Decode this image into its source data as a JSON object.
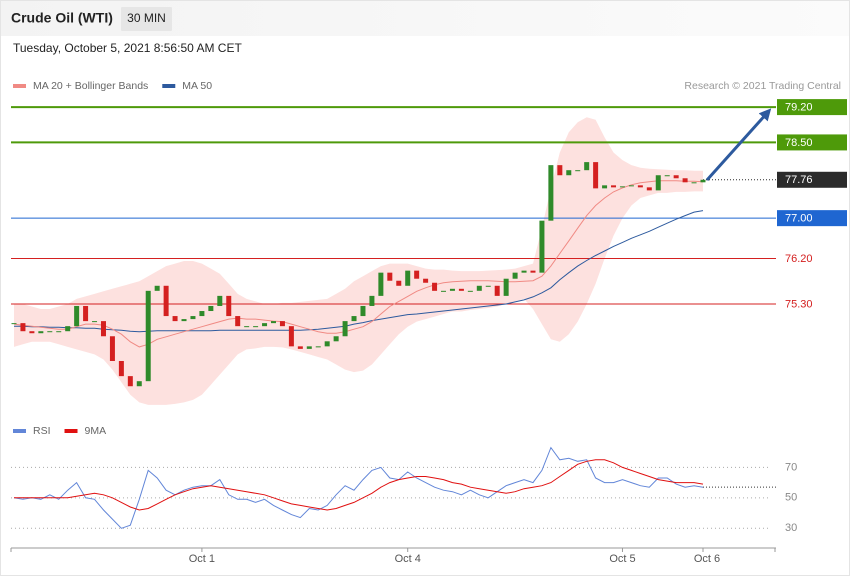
{
  "header": {
    "title": "Crude Oil (WTI)",
    "interval": "30 MIN",
    "timestamp": "Tuesday, October 5, 2021 8:56:50 AM CET",
    "credit": "Research © 2021 Trading Central"
  },
  "chart_data": [
    {
      "type": "candlestick",
      "up_color": "#2f8a2a",
      "down_color": "#d42020",
      "values": [
        74.92,
        74.76,
        74.72,
        74.76,
        74.76,
        74.76,
        74.86,
        75.26,
        74.96,
        74.96,
        74.66,
        74.17,
        73.87,
        73.67,
        73.77,
        75.56,
        75.66,
        75.06,
        74.96,
        75.0,
        75.06,
        75.16,
        75.26,
        75.46,
        75.06,
        74.86,
        74.86,
        74.86,
        74.92,
        74.96,
        74.86,
        74.46,
        74.41,
        74.46,
        74.46,
        74.56,
        74.66,
        74.96,
        75.06,
        75.26,
        75.46,
        75.92,
        75.76,
        75.66,
        75.96,
        75.8,
        75.72,
        75.56,
        75.56,
        75.6,
        75.56,
        75.56,
        75.66,
        75.66,
        75.46,
        75.8,
        75.92,
        75.96,
        75.92,
        76.95,
        78.05,
        77.85,
        77.95,
        77.95,
        78.11,
        77.59,
        77.65,
        77.61,
        77.63,
        77.65,
        77.61,
        77.55,
        77.85,
        77.85,
        77.79,
        77.71,
        77.71,
        77.76
      ],
      "series": [
        {
          "name": "MA 20 + Bollinger Bands",
          "color": "#f08a84",
          "band_color": "#fde1df",
          "values": [
            74.9,
            74.88,
            74.86,
            74.84,
            74.82,
            74.8,
            74.8,
            74.85,
            74.9,
            74.9,
            74.88,
            74.8,
            74.7,
            74.55,
            74.45,
            74.5,
            74.6,
            74.65,
            74.7,
            74.75,
            74.8,
            74.85,
            74.9,
            74.95,
            75.0,
            75.02,
            75.0,
            75.0,
            74.98,
            74.96,
            74.95,
            74.9,
            74.85,
            74.8,
            74.75,
            74.72,
            74.72,
            74.75,
            74.8,
            74.85,
            74.95,
            75.1,
            75.25,
            75.35,
            75.45,
            75.55,
            75.62,
            75.68,
            75.72,
            75.74,
            75.75,
            75.76,
            75.76,
            75.76,
            75.75,
            75.74,
            75.74,
            75.75,
            75.76,
            75.85,
            76.05,
            76.3,
            76.55,
            76.8,
            77.05,
            77.25,
            77.4,
            77.52,
            77.6,
            77.66,
            77.7,
            77.72,
            77.74,
            77.74,
            77.74,
            77.73,
            77.73,
            77.72
          ],
          "upper": [
            75.3,
            75.3,
            75.25,
            75.2,
            75.2,
            75.25,
            75.3,
            75.4,
            75.45,
            75.5,
            75.55,
            75.6,
            75.65,
            75.7,
            75.75,
            75.85,
            75.95,
            76.05,
            76.1,
            76.15,
            76.15,
            76.1,
            76.0,
            75.9,
            75.7,
            75.5,
            75.4,
            75.35,
            75.3,
            75.3,
            75.32,
            75.32,
            75.34,
            75.36,
            75.38,
            75.4,
            75.5,
            75.6,
            75.75,
            75.85,
            75.95,
            76.05,
            76.1,
            76.1,
            76.1,
            76.05,
            76.0,
            75.98,
            75.98,
            75.96,
            75.95,
            75.95,
            75.95,
            75.96,
            75.97,
            75.98,
            76.0,
            76.05,
            76.1,
            76.8,
            77.6,
            78.3,
            78.7,
            78.9,
            79.0,
            78.95,
            78.6,
            78.3,
            78.15,
            78.05,
            78.0,
            77.98,
            77.97,
            77.96,
            77.95,
            77.95,
            77.94,
            77.94
          ],
          "lower": [
            74.45,
            74.5,
            74.55,
            74.55,
            74.55,
            74.5,
            74.45,
            74.4,
            74.35,
            74.3,
            74.2,
            74.0,
            73.75,
            73.5,
            73.35,
            73.3,
            73.3,
            73.3,
            73.32,
            73.35,
            73.4,
            73.5,
            73.7,
            73.9,
            74.1,
            74.3,
            74.4,
            74.42,
            74.45,
            74.45,
            74.44,
            74.4,
            74.35,
            74.3,
            74.25,
            74.2,
            74.1,
            74.0,
            73.95,
            73.98,
            74.1,
            74.3,
            74.5,
            74.7,
            74.85,
            74.95,
            75.0,
            75.05,
            75.1,
            75.15,
            75.15,
            75.18,
            75.2,
            75.22,
            75.25,
            75.3,
            75.35,
            75.4,
            75.2,
            74.9,
            74.6,
            74.55,
            74.7,
            74.95,
            75.3,
            75.7,
            76.2,
            76.65,
            77.0,
            77.25,
            77.4,
            77.45,
            77.5,
            77.5,
            77.52,
            77.52,
            77.53,
            77.53
          ]
        },
        {
          "name": "MA 50",
          "color": "#2d5a9e",
          "values": [
            74.86,
            74.86,
            74.85,
            74.85,
            74.84,
            74.84,
            74.83,
            74.83,
            74.82,
            74.82,
            74.8,
            74.79,
            74.78,
            74.76,
            74.75,
            74.76,
            74.77,
            74.77,
            74.77,
            74.77,
            74.77,
            74.77,
            74.77,
            74.78,
            74.78,
            74.78,
            74.78,
            74.78,
            74.78,
            74.78,
            74.78,
            74.78,
            74.78,
            74.79,
            74.8,
            74.82,
            74.84,
            74.86,
            74.9,
            74.93,
            74.97,
            75.0,
            75.03,
            75.06,
            75.09,
            75.1,
            75.12,
            75.14,
            75.16,
            75.18,
            75.2,
            75.22,
            75.24,
            75.26,
            75.28,
            75.3,
            75.34,
            75.38,
            75.44,
            75.52,
            75.62,
            75.78,
            75.92,
            76.05,
            76.16,
            76.26,
            76.35,
            76.44,
            76.52,
            76.6,
            76.67,
            76.74,
            76.82,
            76.9,
            76.98,
            77.05,
            77.12,
            77.15
          ]
        }
      ],
      "ylim": [
        73.1,
        79.4
      ],
      "levels": [
        {
          "value": 79.2,
          "label": "79.20",
          "color": "#4e9a0a",
          "filled": true,
          "line": "solid",
          "line_width": 2
        },
        {
          "value": 78.5,
          "label": "78.50",
          "color": "#4e9a0a",
          "filled": true,
          "line": "solid",
          "line_width": 2
        },
        {
          "value": 77.76,
          "label": "77.76",
          "color": "#2b2b2b",
          "filled": true,
          "line": "dotted",
          "line_width": 1
        },
        {
          "value": 77.0,
          "label": "77.00",
          "color": "#1f66d1",
          "filled": true,
          "line": "solid",
          "line_width": 1
        },
        {
          "value": 76.2,
          "label": "76.20",
          "color": "#d42020",
          "filled": false,
          "line": "solid",
          "line_width": 1
        },
        {
          "value": 75.3,
          "label": "75.30",
          "color": "#d42020",
          "filled": false,
          "line": "solid",
          "line_width": 1
        }
      ]
    },
    {
      "type": "line",
      "categories": [
        null,
        null,
        null,
        null,
        null,
        null,
        null,
        null,
        null,
        null,
        null,
        null,
        null,
        null,
        null,
        null,
        null,
        null,
        null,
        null,
        null,
        "Oct 1",
        null,
        null,
        null,
        null,
        null,
        null,
        null,
        null,
        null,
        null,
        null,
        null,
        null,
        null,
        null,
        null,
        null,
        null,
        null,
        null,
        null,
        null,
        "Oct 4",
        null,
        null,
        null,
        null,
        null,
        null,
        null,
        null,
        null,
        null,
        null,
        null,
        null,
        null,
        null,
        null,
        null,
        null,
        null,
        null,
        null,
        null,
        null,
        "Oct 5",
        null,
        null,
        null,
        null,
        null,
        null,
        null,
        null,
        "Oct 6"
      ],
      "series": [
        {
          "name": "RSI",
          "color": "#6286d8",
          "values": [
            50,
            49,
            50,
            49,
            52,
            49,
            55,
            60,
            50,
            49,
            42,
            36,
            30,
            32,
            49,
            68,
            63,
            55,
            52,
            55,
            57,
            58,
            58,
            62,
            52,
            49,
            49,
            47,
            49,
            45,
            42,
            39,
            37,
            43,
            42,
            45,
            52,
            58,
            55,
            62,
            68,
            70,
            63,
            62,
            67,
            63,
            60,
            57,
            55,
            54,
            52,
            55,
            52,
            50,
            54,
            58,
            60,
            62,
            60,
            68,
            83,
            75,
            76,
            74,
            75,
            63,
            60,
            60,
            62,
            60,
            58,
            57,
            63,
            63,
            59,
            57,
            58,
            57
          ]
        },
        {
          "name": "9MA",
          "color": "#e01010",
          "values": [
            50,
            50,
            50,
            50,
            50,
            50,
            50,
            51,
            52,
            53,
            52,
            50,
            47,
            44,
            42,
            43,
            46,
            49,
            52,
            54,
            56,
            57,
            58,
            57,
            56,
            55,
            54,
            53,
            52,
            50,
            48,
            46,
            45,
            44,
            43,
            42,
            43,
            45,
            47,
            50,
            53,
            57,
            60,
            62,
            63,
            64,
            64,
            63,
            62,
            60,
            59,
            57,
            56,
            55,
            54,
            53,
            54,
            56,
            57,
            58,
            60,
            64,
            68,
            72,
            74,
            75,
            75,
            73,
            70,
            68,
            66,
            64,
            62,
            61,
            60,
            60,
            60,
            59
          ]
        }
      ],
      "ylim": [
        19,
        88
      ],
      "yticks": [
        30,
        50,
        70
      ]
    }
  ]
}
